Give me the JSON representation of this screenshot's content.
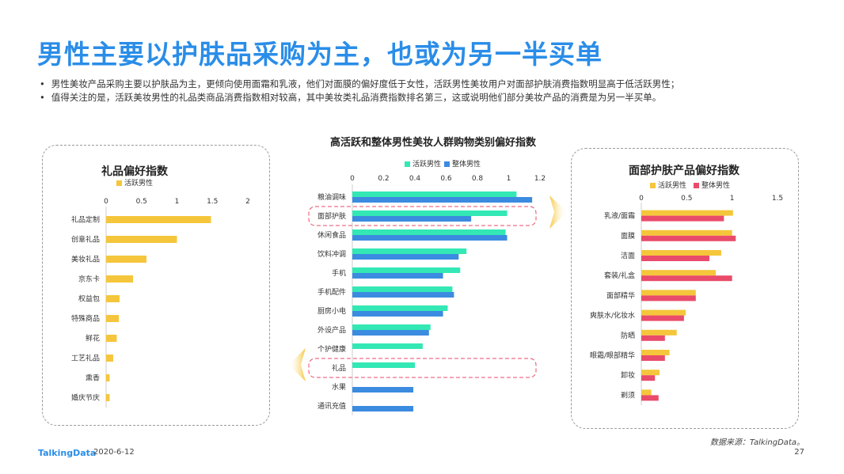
{
  "title": "男性主要以护肤品采购为主，也或为另一半买单",
  "bullets": [
    "男性美妆产品采购主要以护肤品为主，更倾向使用面霜和乳液，他们对面膜的偏好度低于女性，活跃男性美妆用户对面部护肤消费指数明显高于低活跃男性；",
    "值得关注的是，活跃美妆男性的礼品类商品消费指数相对较高，其中美妆类礼品消费指数排名第三，这或说明他们部分美妆产品的消费是为另一半买单。"
  ],
  "footer": {
    "logo": "TalkingData",
    "date": "2020-6-12",
    "source": "数据来源：TalkingData。",
    "page": "27"
  },
  "colors": {
    "active": "#f5c63b",
    "overall_blue": "#3b8be0",
    "active_green": "#33e8b4",
    "overall_red": "#e94b6a",
    "title": "#2a8de8"
  },
  "chart_data": [
    {
      "type": "bar",
      "orientation": "horizontal",
      "title": "礼品偏好指数",
      "categories": [
        "礼品定制",
        "创意礼品",
        "美妆礼品",
        "京东卡",
        "权益包",
        "特殊商品",
        "鲜花",
        "工艺礼品",
        "熏香",
        "婚庆节庆"
      ],
      "series": [
        {
          "name": "活跃男性",
          "color": "#f5c63b",
          "values": [
            1.48,
            1.0,
            0.57,
            0.38,
            0.19,
            0.18,
            0.15,
            0.1,
            0.05,
            0.05
          ]
        }
      ],
      "xlim": [
        0,
        2
      ],
      "xticks": [
        "0",
        "0.5",
        "1",
        "1.5",
        "2"
      ],
      "legend": "top-left"
    },
    {
      "type": "bar",
      "orientation": "horizontal",
      "title": "高活跃和整体男性美妆人群购物类别偏好指数",
      "categories": [
        "粮油调味",
        "面部护肤",
        "休闲食品",
        "饮料冲调",
        "手机",
        "手机配件",
        "厨房小电",
        "外设产品",
        "个护健康",
        "礼品",
        "水果",
        "通讯充值"
      ],
      "series": [
        {
          "name": "活跃男性",
          "color": "#33e8b4",
          "values": [
            1.05,
            0.99,
            0.98,
            0.73,
            0.69,
            0.64,
            0.61,
            0.5,
            0.45,
            0.4,
            null,
            null
          ]
        },
        {
          "name": "整体男性",
          "color": "#3b8be0",
          "values": [
            1.15,
            0.76,
            0.99,
            0.68,
            0.58,
            0.65,
            0.58,
            0.49,
            null,
            null,
            0.39,
            0.39
          ]
        }
      ],
      "xlim": [
        0,
        1.2
      ],
      "xticks": [
        "0",
        "0.2",
        "0.4",
        "0.6",
        "0.8",
        "1",
        "1.2"
      ],
      "legend": "top",
      "highlight": [
        "面部护肤",
        "礼品"
      ]
    },
    {
      "type": "bar",
      "orientation": "horizontal",
      "title": "面部护肤产品偏好指数",
      "categories": [
        "乳液/面霜",
        "面膜",
        "洁面",
        "套装/礼盒",
        "面部精华",
        "爽肤水/化妆水",
        "防晒",
        "眼霜/眼部精华",
        "卸妆",
        "剃须"
      ],
      "series": [
        {
          "name": "活跃男性",
          "color": "#f5c63b",
          "values": [
            1.01,
            1.0,
            0.88,
            0.82,
            0.6,
            0.49,
            0.39,
            0.31,
            0.2,
            0.11
          ]
        },
        {
          "name": "整体男性",
          "color": "#e94b6a",
          "values": [
            0.91,
            1.04,
            0.75,
            1.0,
            0.6,
            0.47,
            0.26,
            0.26,
            0.15,
            0.19
          ]
        }
      ],
      "xlim": [
        0,
        1.5
      ],
      "xticks": [
        "0",
        "0.5",
        "1",
        "1.5"
      ],
      "legend": "top"
    }
  ]
}
